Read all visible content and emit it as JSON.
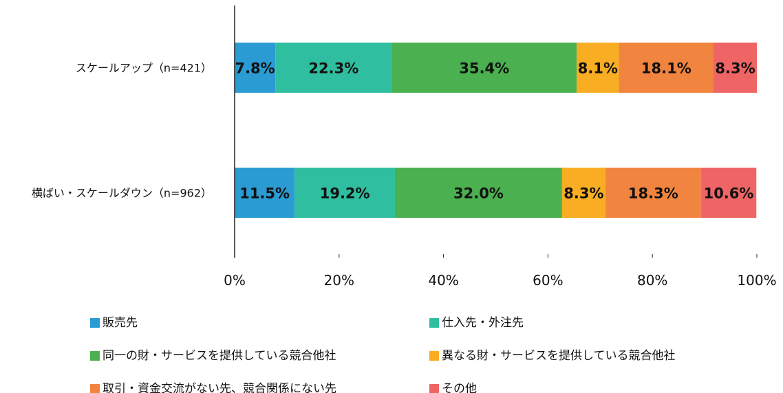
{
  "chart_data": {
    "type": "bar",
    "orientation": "horizontal",
    "stacked": true,
    "categories": [
      "スケールアップ（n=421）",
      "横ばい・スケールダウン（n=962）"
    ],
    "series": [
      {
        "name": "販売先",
        "color": "#2a9bd3",
        "values": [
          7.8,
          11.5
        ]
      },
      {
        "name": "仕入先・外注先",
        "color": "#2fbfa0",
        "values": [
          22.3,
          19.2
        ]
      },
      {
        "name": "同一の財・サービスを提供している競合他社",
        "color": "#4bb04f",
        "values": [
          35.4,
          32.0
        ]
      },
      {
        "name": "異なる財・サービスを提供している競合他社",
        "color": "#f8ad22",
        "values": [
          8.1,
          8.3
        ]
      },
      {
        "name": "取引・資金交流がない先、競合関係にない先",
        "color": "#f1843f",
        "values": [
          18.1,
          18.3
        ]
      },
      {
        "name": "その他",
        "color": "#ef6464",
        "values": [
          8.3,
          10.6
        ]
      }
    ],
    "data_labels": [
      [
        "7.8%",
        "22.3%",
        "35.4%",
        "8.1%",
        "18.1%",
        "8.3%"
      ],
      [
        "11.5%",
        "19.2%",
        "32.0%",
        "8.3%",
        "18.3%",
        "10.6%"
      ]
    ],
    "xlim": [
      0,
      100
    ],
    "x_ticks": [
      "0%",
      "20%",
      "40%",
      "60%",
      "80%",
      "100%"
    ],
    "grid": false,
    "legend_position": "bottom",
    "title": "",
    "xlabel": "",
    "ylabel": ""
  }
}
